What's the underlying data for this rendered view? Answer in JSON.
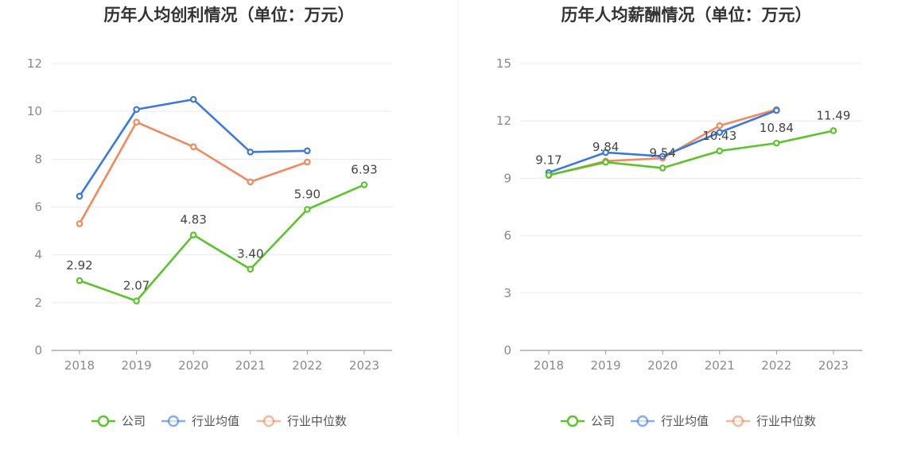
{
  "colors": {
    "company": "#5ac42a",
    "industry_avg": "#3b78e0",
    "industry_median": "#f08a5d",
    "grid": "#e6eaf2",
    "axis": "#999999"
  },
  "legend": {
    "company": "公司",
    "industry_avg": "行业均值",
    "industry_median": "行业中位数"
  },
  "chart_data": [
    {
      "type": "line",
      "title": "历年人均创利情况（单位：万元）",
      "categories": [
        "2018",
        "2019",
        "2020",
        "2021",
        "2022",
        "2023"
      ],
      "ylim": [
        0,
        12
      ],
      "yticks": [
        0,
        2,
        4,
        6,
        8,
        10,
        12
      ],
      "grid": true,
      "legend_position": "bottom",
      "series": [
        {
          "key": "company",
          "name": "公司",
          "values": [
            2.92,
            2.07,
            4.83,
            3.4,
            5.9,
            6.93
          ],
          "labels": [
            "2.92",
            "2.07",
            "4.83",
            "3.40",
            "5.90",
            "6.93"
          ]
        },
        {
          "key": "industry_avg",
          "name": "行业均值",
          "values": [
            6.45,
            10.08,
            10.5,
            8.3,
            8.35,
            null
          ]
        },
        {
          "key": "industry_median",
          "name": "行业中位数",
          "values": [
            5.3,
            9.55,
            8.52,
            7.05,
            7.88,
            null
          ]
        }
      ]
    },
    {
      "type": "line",
      "title": "历年人均薪酬情况（单位：万元）",
      "categories": [
        "2018",
        "2019",
        "2020",
        "2021",
        "2022",
        "2023"
      ],
      "ylim": [
        0,
        15
      ],
      "yticks": [
        0,
        3,
        6,
        9,
        12,
        15
      ],
      "grid": true,
      "legend_position": "bottom",
      "series": [
        {
          "key": "company",
          "name": "公司",
          "values": [
            9.17,
            9.84,
            9.54,
            10.43,
            10.84,
            11.49
          ],
          "labels": [
            "9.17",
            "9.84",
            "9.54",
            "10.43",
            "10.84",
            "11.49"
          ]
        },
        {
          "key": "industry_avg",
          "name": "行业均值",
          "values": [
            9.3,
            10.35,
            10.15,
            11.4,
            12.55,
            null
          ]
        },
        {
          "key": "industry_median",
          "name": "行业中位数",
          "values": [
            9.15,
            9.9,
            10.05,
            11.75,
            12.6,
            null
          ]
        }
      ]
    }
  ]
}
